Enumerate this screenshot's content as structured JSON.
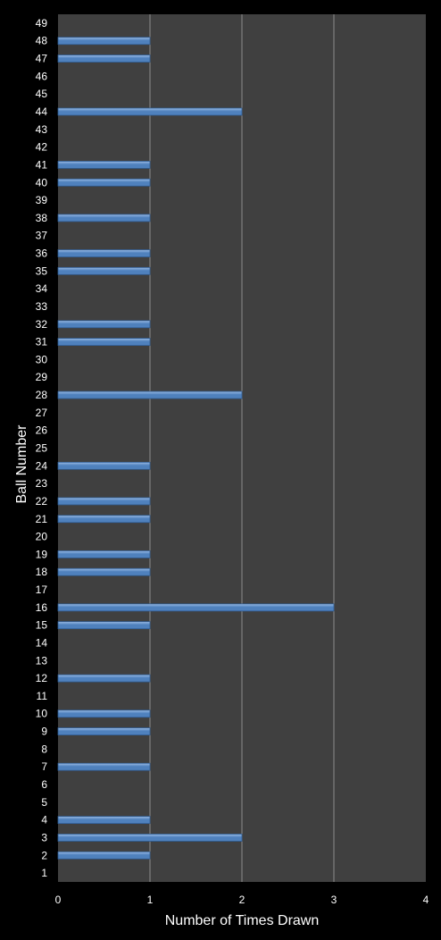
{
  "chart_data": {
    "type": "bar",
    "orientation": "horizontal",
    "title": "",
    "xlabel": "Number of Times Drawn",
    "ylabel": "Ball Number",
    "xlim": [
      0,
      4
    ],
    "xticks": [
      "0",
      "1",
      "2",
      "3",
      "4"
    ],
    "grid": true,
    "legend": "none",
    "colors": {
      "plot_background": "#404040",
      "bar": "#4f81bd",
      "bar_highlight": "#9cbde6",
      "gridline": "#8c8c8c",
      "text": "#ffffff",
      "page_background": "#000000"
    },
    "categories": [
      "1",
      "2",
      "3",
      "4",
      "5",
      "6",
      "7",
      "8",
      "9",
      "10",
      "11",
      "12",
      "13",
      "14",
      "15",
      "16",
      "17",
      "18",
      "19",
      "20",
      "21",
      "22",
      "23",
      "24",
      "25",
      "26",
      "27",
      "28",
      "29",
      "30",
      "31",
      "32",
      "33",
      "34",
      "35",
      "36",
      "37",
      "38",
      "39",
      "40",
      "41",
      "42",
      "43",
      "44",
      "45",
      "46",
      "47",
      "48",
      "49"
    ],
    "values": [
      0,
      1,
      2,
      1,
      0,
      0,
      1,
      0,
      1,
      1,
      0,
      1,
      0,
      0,
      1,
      3,
      0,
      1,
      1,
      0,
      1,
      1,
      0,
      1,
      0,
      0,
      0,
      2,
      0,
      0,
      1,
      1,
      0,
      0,
      1,
      1,
      0,
      1,
      0,
      1,
      1,
      0,
      0,
      2,
      0,
      0,
      1,
      1,
      0
    ]
  }
}
